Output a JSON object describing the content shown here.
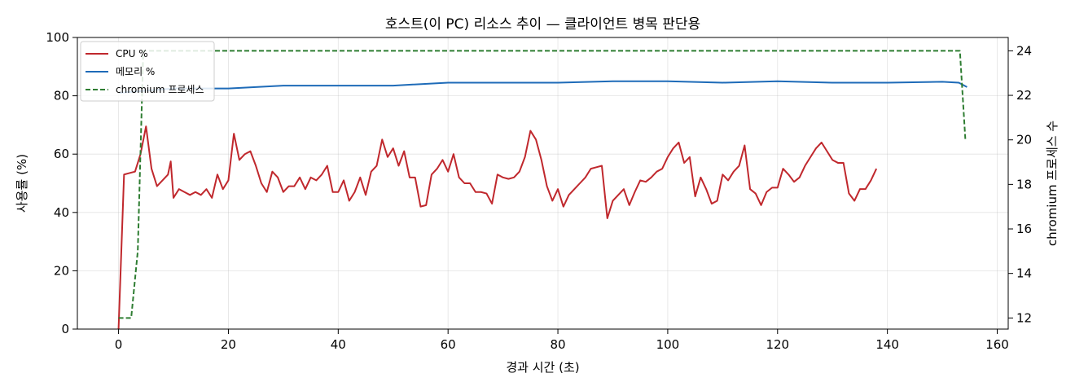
{
  "chart_data": {
    "type": "line",
    "title": "호스트(이 PC) 리소스 추이 — 클라이언트 병목 판단용",
    "xlabel": "경과 시간 (초)",
    "ylabel": "사용률 (%)",
    "y2label": "chromium 프로세스 수",
    "xlim": [
      -7.5,
      162
    ],
    "ylim": [
      0,
      100
    ],
    "y2lim": [
      11.5,
      24.6
    ],
    "xticks": [
      0,
      20,
      40,
      60,
      80,
      100,
      120,
      140,
      160
    ],
    "yticks": [
      0,
      20,
      40,
      60,
      80,
      100
    ],
    "y2ticks": [
      12,
      14,
      16,
      18,
      20,
      22,
      24
    ],
    "grid": true,
    "legend": {
      "position": "top-left",
      "entries": [
        "CPU %",
        "메모리 %",
        "chromium 프로세스"
      ]
    },
    "series": [
      {
        "name": "CPU %",
        "axis": "left",
        "color": "#c0282d",
        "style": "solid",
        "points": [
          [
            0,
            0
          ],
          [
            1,
            53
          ],
          [
            2,
            53.5
          ],
          [
            3,
            54
          ],
          [
            4,
            60
          ],
          [
            5,
            69.5
          ],
          [
            6,
            55
          ],
          [
            7,
            49
          ],
          [
            8,
            51
          ],
          [
            9,
            53
          ],
          [
            9.5,
            57.5
          ],
          [
            10,
            45
          ],
          [
            11,
            48
          ],
          [
            12,
            47
          ],
          [
            13,
            46
          ],
          [
            14,
            47
          ],
          [
            15,
            46
          ],
          [
            16,
            48
          ],
          [
            17,
            45
          ],
          [
            18,
            53
          ],
          [
            19,
            48
          ],
          [
            20,
            51
          ],
          [
            21,
            67
          ],
          [
            22,
            58
          ],
          [
            23,
            60
          ],
          [
            24,
            61
          ],
          [
            25,
            56
          ],
          [
            26,
            50
          ],
          [
            27,
            47
          ],
          [
            28,
            54
          ],
          [
            29,
            52
          ],
          [
            30,
            47
          ],
          [
            31,
            49
          ],
          [
            32,
            49
          ],
          [
            33,
            52
          ],
          [
            34,
            48
          ],
          [
            35,
            52
          ],
          [
            36,
            51
          ],
          [
            37,
            53
          ],
          [
            38,
            56
          ],
          [
            39,
            47
          ],
          [
            40,
            47
          ],
          [
            41,
            51
          ],
          [
            42,
            44
          ],
          [
            43,
            47
          ],
          [
            44,
            52
          ],
          [
            45,
            46
          ],
          [
            46,
            54
          ],
          [
            47,
            56
          ],
          [
            48,
            65
          ],
          [
            49,
            59
          ],
          [
            50,
            62
          ],
          [
            51,
            56
          ],
          [
            52,
            61
          ],
          [
            53,
            52
          ],
          [
            54,
            52
          ],
          [
            55,
            42
          ],
          [
            56,
            42.5
          ],
          [
            57,
            53
          ],
          [
            58,
            55
          ],
          [
            59,
            58
          ],
          [
            60,
            54
          ],
          [
            61,
            60
          ],
          [
            62,
            52
          ],
          [
            63,
            50
          ],
          [
            64,
            50
          ],
          [
            65,
            47
          ],
          [
            66,
            47
          ],
          [
            67,
            46.5
          ],
          [
            68,
            43
          ],
          [
            69,
            53
          ],
          [
            70,
            52
          ],
          [
            71,
            51.5
          ],
          [
            72,
            52
          ],
          [
            73,
            54
          ],
          [
            74,
            59
          ],
          [
            75,
            68
          ],
          [
            76,
            65
          ],
          [
            77,
            58
          ],
          [
            78,
            49
          ],
          [
            79,
            44
          ],
          [
            80,
            48
          ],
          [
            81,
            42
          ],
          [
            82,
            46
          ],
          [
            83,
            48
          ],
          [
            84,
            50
          ],
          [
            85,
            52
          ],
          [
            86,
            55
          ],
          [
            87,
            55.5
          ],
          [
            88,
            56
          ],
          [
            89,
            38
          ],
          [
            90,
            44
          ],
          [
            91,
            46
          ],
          [
            92,
            48
          ],
          [
            93,
            42.5
          ],
          [
            94,
            47
          ],
          [
            95,
            51
          ],
          [
            96,
            50.5
          ],
          [
            97,
            52
          ],
          [
            98,
            54
          ],
          [
            99,
            55
          ],
          [
            100,
            59
          ],
          [
            101,
            62
          ],
          [
            102,
            64
          ],
          [
            103,
            57
          ],
          [
            104,
            59
          ],
          [
            105,
            45.5
          ],
          [
            106,
            52
          ],
          [
            107,
            48
          ],
          [
            108,
            43
          ],
          [
            109,
            44
          ],
          [
            110,
            53
          ],
          [
            111,
            51
          ],
          [
            112,
            54
          ],
          [
            113,
            56
          ],
          [
            114,
            63
          ],
          [
            115,
            48
          ],
          [
            116,
            46.5
          ],
          [
            117,
            42.5
          ],
          [
            118,
            47
          ],
          [
            119,
            48.5
          ],
          [
            120,
            48.5
          ],
          [
            121,
            55
          ],
          [
            122,
            53
          ],
          [
            123,
            50.5
          ],
          [
            124,
            52
          ],
          [
            125,
            56
          ],
          [
            126,
            59
          ],
          [
            127,
            62
          ],
          [
            128,
            64
          ],
          [
            129,
            61
          ],
          [
            130,
            58
          ],
          [
            131,
            57
          ],
          [
            132,
            57
          ],
          [
            133,
            46.5
          ],
          [
            134,
            44
          ],
          [
            135,
            48
          ],
          [
            136,
            48
          ],
          [
            137,
            51
          ],
          [
            138,
            55
          ]
        ]
      },
      {
        "name": "메모리 %",
        "axis": "left",
        "color": "#1e6bb8",
        "style": "solid",
        "points": [
          [
            0,
            81
          ],
          [
            10,
            82.5
          ],
          [
            20,
            82.5
          ],
          [
            25,
            83
          ],
          [
            30,
            83.5
          ],
          [
            40,
            83.5
          ],
          [
            50,
            83.5
          ],
          [
            60,
            84.5
          ],
          [
            70,
            84.5
          ],
          [
            80,
            84.5
          ],
          [
            90,
            85
          ],
          [
            100,
            85
          ],
          [
            110,
            84.5
          ],
          [
            120,
            85
          ],
          [
            130,
            84.5
          ],
          [
            140,
            84.5
          ],
          [
            150,
            84.8
          ],
          [
            153,
            84.5
          ],
          [
            154.5,
            83
          ]
        ]
      },
      {
        "name": "chromium 프로세스",
        "axis": "right",
        "color": "#2e7d32",
        "style": "dashed",
        "points": [
          [
            0,
            12
          ],
          [
            2.3,
            12
          ],
          [
            3.5,
            15
          ],
          [
            4.5,
            24
          ],
          [
            10,
            24
          ],
          [
            50,
            24
          ],
          [
            100,
            24
          ],
          [
            150,
            24
          ],
          [
            153.2,
            24
          ],
          [
            154.2,
            20
          ]
        ]
      }
    ]
  }
}
